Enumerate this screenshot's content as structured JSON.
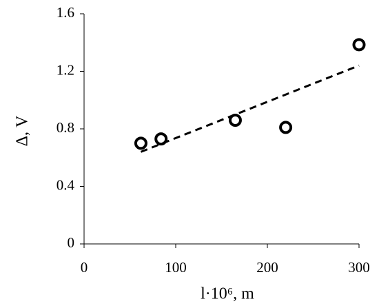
{
  "chart_data": {
    "type": "scatter",
    "x_label": "l·10⁶, m",
    "y_label": "Δ, V",
    "x": [
      62,
      84,
      165,
      220,
      300
    ],
    "values": [
      0.7,
      0.73,
      0.86,
      0.81,
      1.385
    ],
    "color": "#000000",
    "trendline": {
      "x": [
        62,
        300
      ],
      "values": [
        0.64,
        1.24
      ]
    },
    "xlim": [
      0,
      300
    ],
    "xticks": [
      0,
      100,
      200,
      300
    ],
    "ylim": [
      0,
      1.6
    ],
    "yticks": [
      0,
      0.4,
      0.8,
      1.2,
      1.6
    ],
    "grid": false
  }
}
